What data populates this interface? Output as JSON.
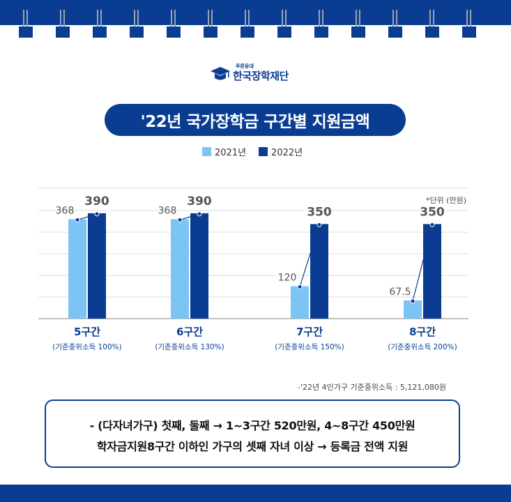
{
  "logo": {
    "small_text": "푸른등대",
    "name": "한국장학재단"
  },
  "title": "'22년 국가장학금 구간별 지원금액",
  "legend": [
    {
      "label": "2021년",
      "color": "#7cc4f4"
    },
    {
      "label": "2022년",
      "color": "#0a3d91"
    }
  ],
  "unit_label": "*단위 (만원)",
  "chart_data": {
    "type": "bar",
    "categories": [
      "5구간",
      "6구간",
      "7구간",
      "8구간"
    ],
    "category_subs": [
      "(기준중위소득 100%)",
      "(기준중위소득 130%)",
      "(기준중위소득 150%)",
      "(기준중위소득 200%)"
    ],
    "series": [
      {
        "name": "2021년",
        "values": [
          368,
          368,
          120,
          67.5
        ],
        "color": "#7cc4f4"
      },
      {
        "name": "2022년",
        "values": [
          390,
          390,
          350,
          350
        ],
        "color": "#0a3d91"
      }
    ],
    "value_labels": {
      "2021년": [
        "368",
        "368",
        "120",
        "67.5"
      ],
      "2022년": [
        "390",
        "390",
        "350",
        "350"
      ]
    },
    "ylim": [
      0,
      400
    ],
    "grid": true
  },
  "footnote": "-'22년 4인가구 기준중위소득 : 5,121,080원",
  "notes": [
    "- (다자녀가구) 첫째, 둘째 → 1~3구간 520만원, 4~8구간 450만원",
    "학자금지원8구간 이하인 가구의 셋째 자녀 이상 → 등록금 전액 지원"
  ]
}
